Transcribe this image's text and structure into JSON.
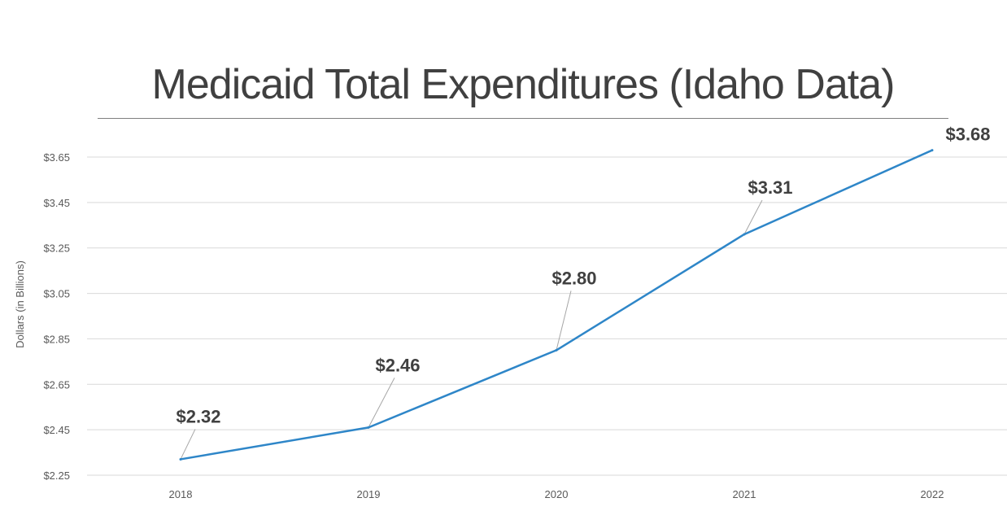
{
  "chart_data": {
    "type": "line",
    "title": "Medicaid Total Expenditures (Idaho Data)",
    "xlabel": "",
    "ylabel": "Dollars (in Billions)",
    "categories": [
      "2018",
      "2019",
      "2020",
      "2021",
      "2022"
    ],
    "series": [
      {
        "values": [
          2.32,
          2.46,
          2.8,
          3.31,
          3.68
        ],
        "color": "#2e86c8"
      }
    ],
    "data_labels": [
      "$2.32",
      "$2.46",
      "$2.80",
      "$3.31",
      "$3.68"
    ],
    "y_ticks": [
      "$2.25",
      "$2.45",
      "$2.65",
      "$2.85",
      "$3.05",
      "$3.25",
      "$3.45",
      "$3.65"
    ],
    "ylim": [
      2.25,
      3.65
    ],
    "grid": true,
    "legend": "none"
  }
}
